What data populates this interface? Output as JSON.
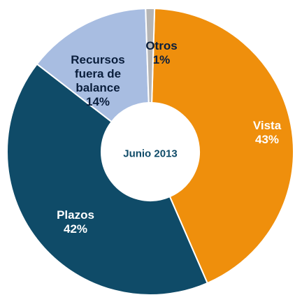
{
  "chart_data": {
    "type": "donut",
    "center_text": "Junio 2013",
    "categories": [
      "Vista",
      "Plazos",
      "Recursos fuera de balance",
      "Otros"
    ],
    "values": [
      43,
      42,
      14,
      1
    ],
    "value_labels": [
      "43%",
      "42%",
      "14%",
      "1%"
    ],
    "colors": [
      "#ef8f0c",
      "#0f4b68",
      "#a8bde1",
      "#b5b5b5"
    ]
  }
}
